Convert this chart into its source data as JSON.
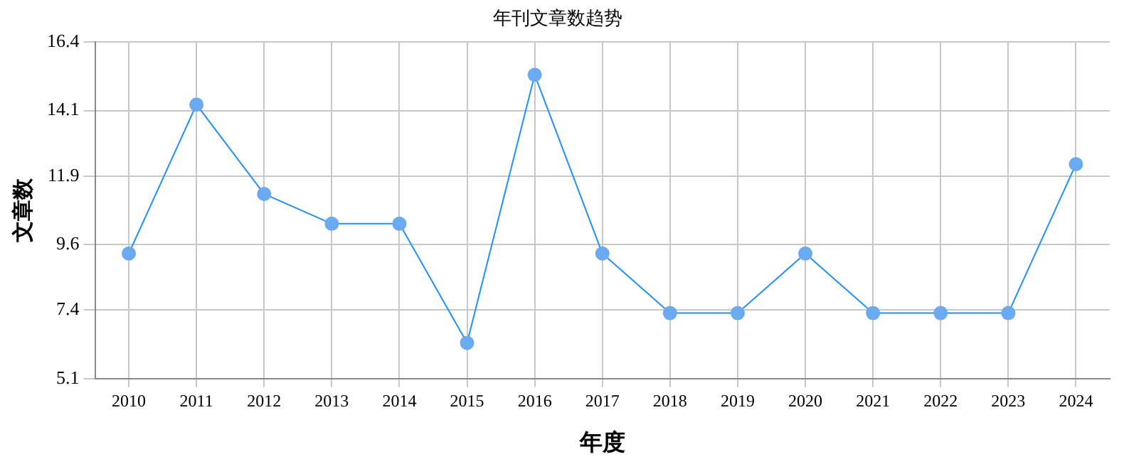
{
  "chart_data": {
    "type": "line",
    "title": "年刊文章数趋势",
    "xlabel": "年度",
    "ylabel": "文章数",
    "categories": [
      "2010",
      "2011",
      "2012",
      "2013",
      "2014",
      "2015",
      "2016",
      "2017",
      "2018",
      "2019",
      "2020",
      "2021",
      "2022",
      "2023",
      "2024"
    ],
    "series": [
      {
        "color": "#1e90ff",
        "values": [
          9.3,
          14.3,
          11.3,
          10.3,
          10.3,
          6.3,
          15.3,
          9.3,
          7.3,
          7.3,
          9.3,
          7.3,
          7.3,
          7.3,
          12.3
        ]
      }
    ],
    "ylim": [
      5.1,
      16.4
    ],
    "yticks": [
      5.1,
      7.4,
      9.6,
      11.9,
      14.1,
      16.4
    ],
    "grid": true,
    "marker": "circle",
    "line_style": "solid",
    "legend": false
  }
}
